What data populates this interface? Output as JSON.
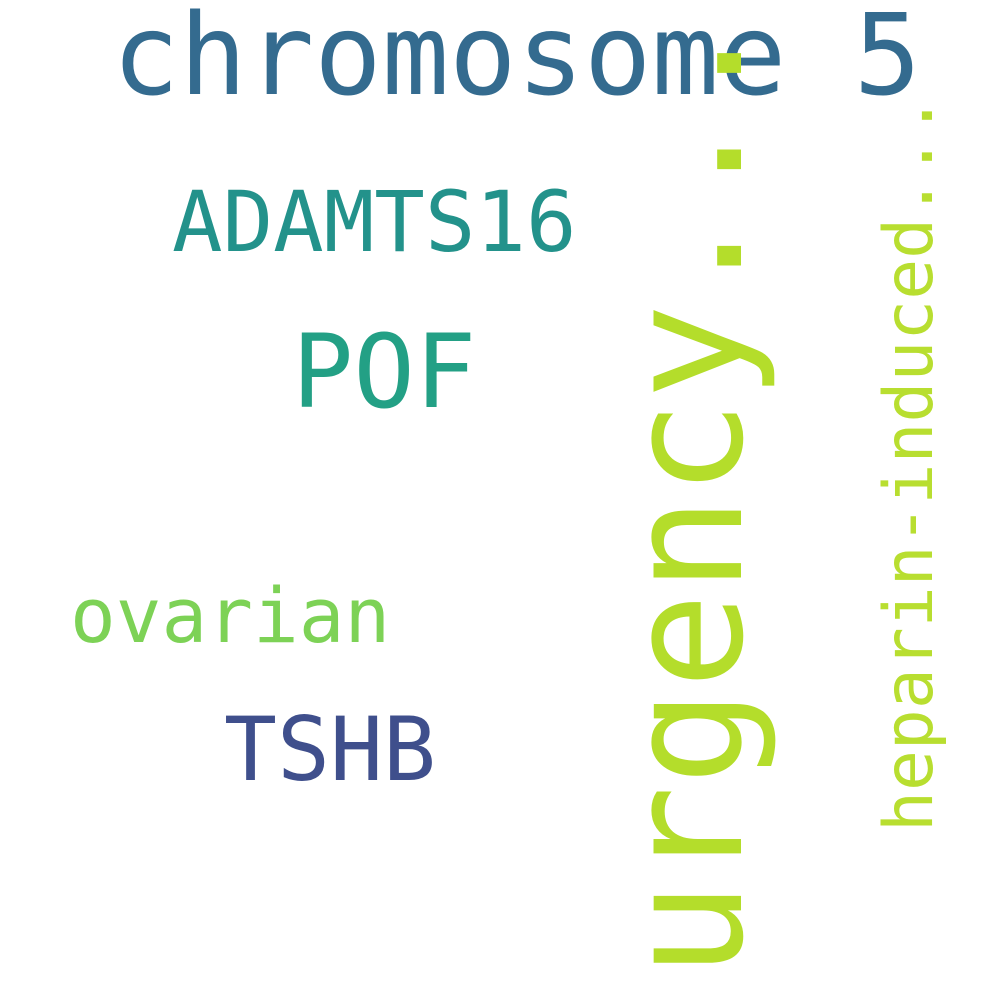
{
  "word_cloud": {
    "words": [
      {
        "text": "chromosome 5",
        "color": "#346b8f",
        "orientation": "horizontal"
      },
      {
        "text": "ADAMTS16",
        "color": "#23928b",
        "orientation": "horizontal"
      },
      {
        "text": "POF",
        "color": "#23a085",
        "orientation": "horizontal"
      },
      {
        "text": "urgency...",
        "color": "#b4dd2b",
        "orientation": "vertical"
      },
      {
        "text": "heparin-induced...",
        "color": "#b8de30",
        "orientation": "vertical"
      },
      {
        "text": "ovarian",
        "color": "#7dd256",
        "orientation": "horizontal"
      },
      {
        "text": "TSHB",
        "color": "#3f4f8c",
        "orientation": "horizontal"
      }
    ]
  }
}
